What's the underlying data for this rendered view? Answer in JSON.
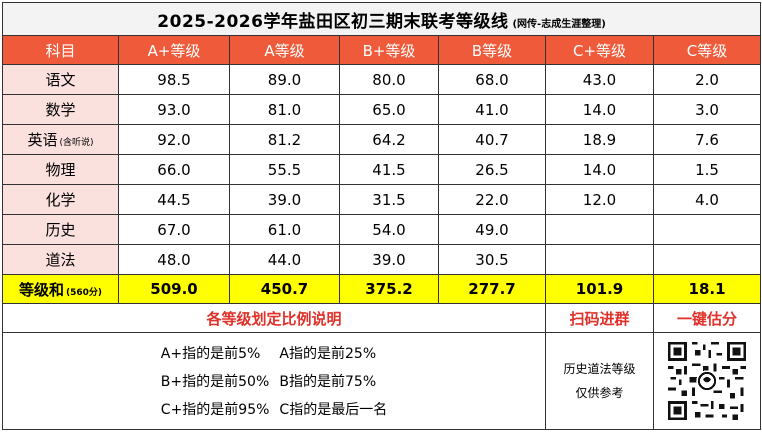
{
  "title": {
    "main": "2025-2026学年盐田区初三期末联考等级线",
    "note": "(网传-志成生涯整理)"
  },
  "header": {
    "subject": "科目",
    "grades": [
      "A+等级",
      "A等级",
      "B+等级",
      "B等级",
      "C+等级",
      "C等级"
    ]
  },
  "rows": [
    {
      "subject": "语文",
      "sub_note": "",
      "values": [
        "98.5",
        "89.0",
        "80.0",
        "68.0",
        "43.0",
        "2.0"
      ]
    },
    {
      "subject": "数学",
      "sub_note": "",
      "values": [
        "93.0",
        "81.0",
        "65.0",
        "41.0",
        "14.0",
        "3.0"
      ]
    },
    {
      "subject": "英语",
      "sub_note": "(含听说)",
      "values": [
        "92.0",
        "81.2",
        "64.2",
        "40.7",
        "18.9",
        "7.6"
      ]
    },
    {
      "subject": "物理",
      "sub_note": "",
      "values": [
        "66.0",
        "55.5",
        "41.5",
        "26.5",
        "14.0",
        "1.5"
      ]
    },
    {
      "subject": "化学",
      "sub_note": "",
      "values": [
        "44.5",
        "39.0",
        "31.5",
        "22.0",
        "12.0",
        "4.0"
      ]
    },
    {
      "subject": "历史",
      "sub_note": "",
      "values": [
        "67.0",
        "61.0",
        "54.0",
        "49.0",
        "",
        ""
      ]
    },
    {
      "subject": "道法",
      "sub_note": "",
      "values": [
        "48.0",
        "44.0",
        "39.0",
        "30.5",
        "",
        ""
      ]
    }
  ],
  "sum_row": {
    "label": "等级和",
    "sub_note": "(560分)",
    "values": [
      "509.0",
      "450.7",
      "375.2",
      "277.7",
      "101.9",
      "18.1"
    ]
  },
  "footer": {
    "ratio_title": "各等级划定比例说明",
    "scan_label": "扫码进群",
    "estimate_label": "一键估分",
    "rules": [
      "A+指的是前5%",
      "A指的是前25%",
      "B+指的是前50%",
      "B指的是前75%",
      "C+指的是前95%",
      "C指的是最后一名"
    ],
    "ref_line1": "历史道法等级",
    "ref_line2": "仅供参考"
  },
  "colors": {
    "header_bg": "#ef5b3a",
    "subject_bg": "#fbe1de",
    "sum_bg": "#ffff00",
    "accent_red": "#e0312a"
  }
}
